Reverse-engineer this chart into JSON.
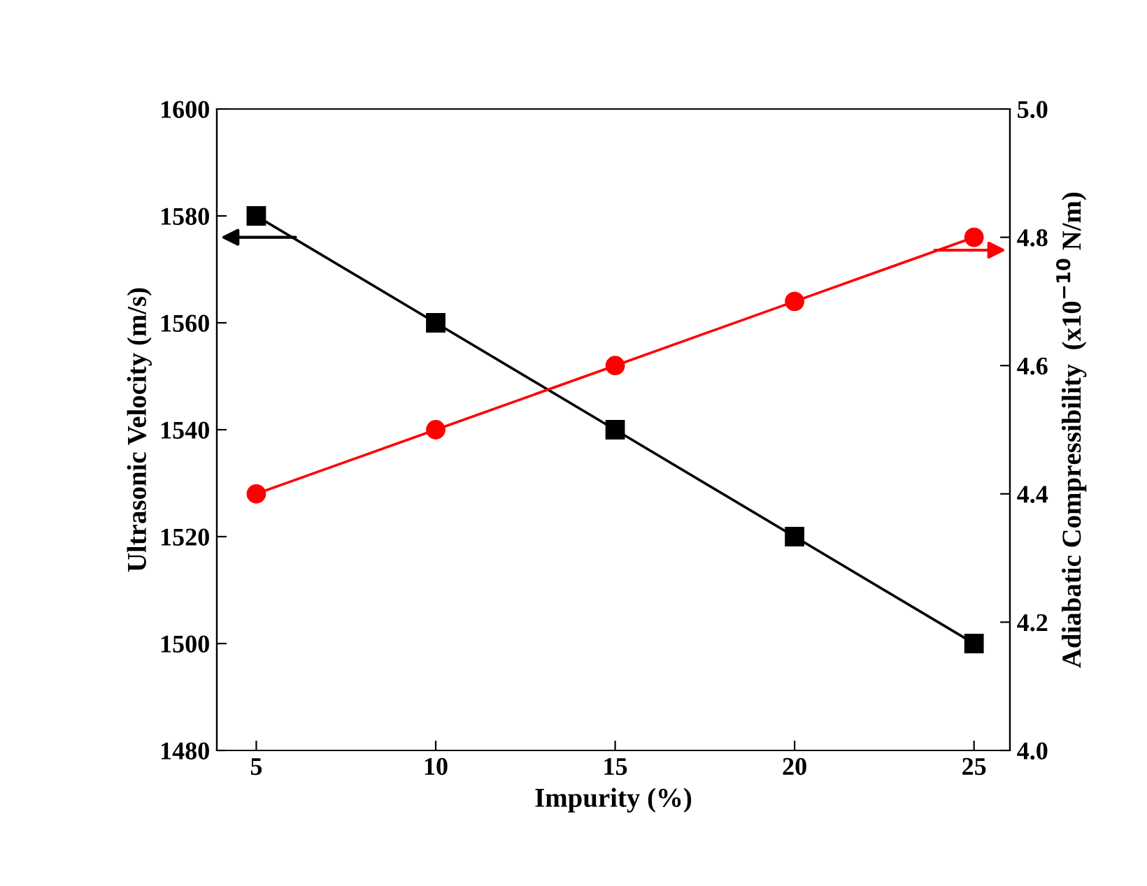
{
  "chart_data": {
    "type": "line",
    "xlabel": "Impurity (%)",
    "ylabel": "Ultrasonic Velocity (m/s)",
    "y2label": "Adiabatic Compressibility  (x10$^{−10}$ N/m)",
    "x": [
      5,
      10,
      15,
      20,
      25
    ],
    "series": [
      {
        "color": "#000000",
        "marker": "square",
        "values": [
          1580,
          1560,
          1540,
          1520,
          1500
        ]
      },
      {
        "color": "#ff0000",
        "marker": "circle",
        "axis": "y2",
        "values": [
          4.4,
          4.5,
          4.6,
          4.7,
          4.8
        ]
      }
    ],
    "xlim": [
      3.9,
      26
    ],
    "xticks": [
      5,
      10,
      15,
      20,
      25
    ],
    "ylim": [
      1480,
      1600
    ],
    "yticks": [
      1480,
      1500,
      1520,
      1540,
      1560,
      1580,
      1600
    ],
    "y2lim": [
      4.0,
      5.0
    ],
    "y2ticks": [
      {
        "value": 4.0,
        "label": "4.0"
      },
      4.2,
      4.4,
      4.6,
      4.8,
      {
        "value": 5.0,
        "label": "5.0"
      }
    ],
    "grid": false,
    "legend": false,
    "line_style": "solid"
  }
}
